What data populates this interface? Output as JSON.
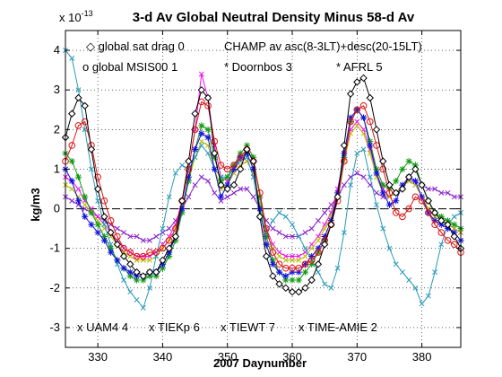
{
  "chart_data": {
    "type": "line",
    "title": "3-d Av Global Neutral Density Minus 58-d Av",
    "xlabel": "2007 Daynumber",
    "ylabel": "kg/m3",
    "y_exponent_label": "x 10",
    "y_exponent_power": "-13",
    "xlim": [
      325,
      386
    ],
    "ylim": [
      -3.5,
      4.5
    ],
    "x_ticks": [
      330,
      340,
      350,
      360,
      370,
      380
    ],
    "y_ticks": [
      -3,
      -2,
      -1,
      0,
      1,
      2,
      3,
      4
    ],
    "grid": true,
    "zero_line": "dashed",
    "legend_top_row1_left": "global sat drag 0",
    "legend_top_row1_right": "CHAMP av asc(8-3LT)+desc(20-15LT)",
    "series": [
      {
        "name": "global sat drag 0",
        "marker": "diamond",
        "color": "#000000",
        "legend_label": "◇ global sat drag 0",
        "x": [
          325,
          326,
          327,
          328,
          329,
          330,
          331,
          332,
          333,
          334,
          335,
          336,
          337,
          338,
          339,
          340,
          341,
          342,
          343,
          344,
          345,
          346,
          347,
          348,
          349,
          350,
          351,
          352,
          353,
          354,
          355,
          356,
          357,
          358,
          359,
          360,
          361,
          362,
          363,
          364,
          365,
          366,
          367,
          368,
          369,
          370,
          371,
          372,
          373,
          374,
          375,
          376,
          377,
          378,
          379,
          380,
          381,
          382,
          383,
          384,
          385,
          386
        ],
        "values": [
          1.8,
          2.4,
          2.8,
          2.6,
          1.5,
          0.5,
          -0.2,
          -0.6,
          -0.9,
          -1.2,
          -1.4,
          -1.6,
          -1.7,
          -1.6,
          -1.6,
          -1.3,
          -1.0,
          -0.7,
          0.2,
          1.2,
          2.4,
          3.0,
          2.8,
          1.4,
          0.6,
          0.5,
          0.6,
          1.0,
          1.5,
          1.2,
          -0.2,
          -1.2,
          -1.7,
          -1.9,
          -2.0,
          -2.1,
          -2.1,
          -2.0,
          -1.8,
          -1.4,
          -0.9,
          -0.4,
          0.3,
          1.6,
          2.9,
          3.2,
          3.3,
          2.8,
          2.0,
          1.2,
          0.6,
          0.4,
          0.5,
          0.8,
          1.0,
          0.6,
          0.2,
          -0.1,
          -0.3,
          -0.4,
          -0.7,
          -1.0
        ]
      },
      {
        "name": "global MSIS00 1",
        "marker": "circle",
        "color": "#dd1111",
        "legend_label": "o global MSIS00 1",
        "x": [
          325,
          326,
          327,
          328,
          329,
          330,
          331,
          332,
          333,
          334,
          335,
          336,
          337,
          338,
          339,
          340,
          341,
          342,
          343,
          344,
          345,
          346,
          347,
          348,
          349,
          350,
          351,
          352,
          353,
          354,
          355,
          356,
          357,
          358,
          359,
          360,
          361,
          362,
          363,
          364,
          365,
          366,
          367,
          368,
          369,
          370,
          371,
          372,
          373,
          374,
          375,
          376,
          377,
          378,
          379,
          380,
          381,
          382,
          383,
          384,
          385,
          386
        ],
        "values": [
          1.2,
          1.6,
          2.1,
          2.2,
          1.6,
          0.8,
          0.2,
          -0.3,
          -0.7,
          -1.0,
          -1.1,
          -1.2,
          -1.2,
          -1.1,
          -1.1,
          -1.0,
          -0.8,
          -0.5,
          0.2,
          1.0,
          2.0,
          2.7,
          2.6,
          1.7,
          1.1,
          1.0,
          1.1,
          1.3,
          1.5,
          1.2,
          0.4,
          -0.5,
          -1.1,
          -1.4,
          -1.5,
          -1.5,
          -1.5,
          -1.4,
          -1.3,
          -1.1,
          -0.8,
          -0.4,
          0.2,
          1.2,
          2.2,
          2.5,
          2.6,
          2.2,
          1.6,
          1.0,
          0.4,
          -0.1,
          -0.2,
          0.0,
          0.3,
          0.2,
          -0.1,
          -0.4,
          -0.6,
          -0.8,
          -0.9,
          -1.1
        ]
      },
      {
        "name": "Doornbos 3",
        "marker": "star",
        "color": "#1111dd",
        "legend_label": "* Doornbos 3",
        "x": [
          325,
          326,
          327,
          328,
          329,
          330,
          331,
          332,
          333,
          334,
          335,
          336,
          337,
          338,
          339,
          340,
          341,
          342,
          343,
          344,
          345,
          346,
          347,
          348,
          349,
          350,
          351,
          352,
          353,
          354,
          355,
          356,
          357,
          358,
          359,
          360,
          361,
          362,
          363,
          364,
          365,
          366,
          367,
          368,
          369,
          370,
          371,
          372,
          373,
          374,
          375,
          376,
          377,
          378,
          379,
          380,
          381,
          382,
          383,
          384,
          385,
          386
        ],
        "values": [
          1.0,
          0.7,
          0.2,
          -0.2,
          -0.4,
          -0.6,
          -0.8,
          -1.1,
          -1.3,
          -1.5,
          -1.6,
          -1.7,
          -1.7,
          -1.6,
          -1.6,
          -1.4,
          -1.1,
          -0.7,
          0.0,
          0.8,
          1.5,
          1.9,
          1.8,
          1.0,
          0.3,
          0.6,
          1.0,
          1.3,
          1.4,
          1.0,
          0.0,
          -0.9,
          -1.4,
          -1.6,
          -1.7,
          -1.6,
          -1.6,
          -1.4,
          -1.2,
          -1.0,
          -0.7,
          -0.3,
          0.4,
          1.4,
          2.3,
          2.5,
          2.3,
          1.6,
          0.9,
          0.4,
          0.1,
          0.2,
          0.6,
          0.8,
          0.7,
          0.3,
          -0.1,
          -0.3,
          -0.4,
          -0.5,
          -0.6,
          -0.8
        ]
      },
      {
        "name": "AFRL 5",
        "marker": "star",
        "color": "#119911",
        "legend_label": "* AFRL 5",
        "x": [
          325,
          326,
          327,
          328,
          329,
          330,
          331,
          332,
          333,
          334,
          335,
          336,
          337,
          338,
          339,
          340,
          341,
          342,
          343,
          344,
          345,
          346,
          347,
          348,
          349,
          350,
          351,
          352,
          353,
          354,
          355,
          356,
          357,
          358,
          359,
          360,
          361,
          362,
          363,
          364,
          365,
          366,
          367,
          368,
          369,
          370,
          371,
          372,
          373,
          374,
          375,
          376,
          377,
          378,
          379,
          380,
          381,
          382,
          383,
          384,
          385,
          386
        ],
        "values": [
          1.4,
          1.2,
          0.8,
          0.3,
          -0.1,
          -0.4,
          -0.7,
          -1.0,
          -1.3,
          -1.5,
          -1.7,
          -1.8,
          -1.8,
          -1.7,
          -1.7,
          -1.5,
          -1.2,
          -0.8,
          -0.1,
          0.7,
          1.5,
          2.1,
          2.0,
          1.3,
          0.7,
          0.8,
          1.1,
          1.4,
          1.6,
          1.3,
          0.3,
          -0.7,
          -1.3,
          -1.6,
          -1.8,
          -1.8,
          -1.8,
          -1.6,
          -1.4,
          -1.1,
          -0.8,
          -0.4,
          0.3,
          1.3,
          2.2,
          2.5,
          2.3,
          1.7,
          1.0,
          0.6,
          0.5,
          0.7,
          1.0,
          1.2,
          1.1,
          0.6,
          0.2,
          -0.1,
          -0.2,
          -0.3,
          -0.4,
          -0.5
        ]
      },
      {
        "name": "UAM4 4",
        "marker": "x",
        "color": "#2a9ab8",
        "legend_label": "x UAM4 4",
        "x": [
          325,
          326,
          327,
          328,
          329,
          330,
          331,
          332,
          333,
          334,
          335,
          336,
          337,
          338,
          339,
          340,
          341,
          342,
          343,
          344,
          345,
          346,
          347,
          348,
          349,
          350,
          351,
          352,
          353,
          354,
          355,
          356,
          357,
          358,
          359,
          360,
          361,
          362,
          363,
          364,
          365,
          366,
          367,
          368,
          369,
          370,
          371,
          372,
          373,
          374,
          375,
          376,
          377,
          378,
          379,
          380,
          381,
          382,
          383,
          384,
          385,
          386
        ],
        "values": [
          4.0,
          3.8,
          3.0,
          2.0,
          1.0,
          0.2,
          -0.4,
          -0.9,
          -1.4,
          -1.8,
          -2.1,
          -2.3,
          -2.5,
          -2.0,
          -1.2,
          -0.5,
          0.3,
          0.9,
          1.1,
          1.0,
          1.3,
          1.6,
          1.4,
          1.0,
          0.8,
          0.8,
          1.0,
          1.2,
          1.3,
          0.8,
          -0.2,
          -0.6,
          -0.3,
          -0.1,
          -0.2,
          -0.4,
          -0.7,
          -1.0,
          -1.3,
          -1.6,
          -1.9,
          -2.0,
          -1.5,
          -0.6,
          0.6,
          1.4,
          1.5,
          0.8,
          0.1,
          -0.5,
          -1.0,
          -1.4,
          -1.6,
          -1.8,
          -2.0,
          -2.4,
          -2.2,
          -1.6,
          -0.9,
          -0.4,
          -0.2,
          -0.1
        ]
      },
      {
        "name": "TIEKp 6",
        "marker": "x",
        "color": "#bbbb00",
        "legend_label": "x TIEKp 6",
        "x": [
          325,
          326,
          327,
          328,
          329,
          330,
          331,
          332,
          333,
          334,
          335,
          336,
          337,
          338,
          339,
          340,
          341,
          342,
          343,
          344,
          345,
          346,
          347,
          348,
          349,
          350,
          351,
          352,
          353,
          354,
          355,
          356,
          357,
          358,
          359,
          360,
          361,
          362,
          363,
          364,
          365,
          366,
          367,
          368,
          369,
          370,
          371,
          372,
          373,
          374,
          375,
          376,
          377,
          378,
          379,
          380,
          381,
          382,
          383,
          384,
          385,
          386
        ],
        "values": [
          0.6,
          0.5,
          0.3,
          0.1,
          -0.1,
          -0.3,
          -0.5,
          -0.7,
          -0.9,
          -1.1,
          -1.2,
          -1.3,
          -1.3,
          -1.3,
          -1.2,
          -1.0,
          -0.8,
          -0.5,
          0.0,
          0.7,
          1.3,
          1.7,
          1.6,
          1.0,
          0.5,
          0.6,
          0.9,
          1.1,
          1.2,
          0.9,
          0.1,
          -0.6,
          -1.0,
          -1.2,
          -1.3,
          -1.3,
          -1.3,
          -1.2,
          -1.0,
          -0.8,
          -0.5,
          -0.2,
          0.4,
          1.2,
          1.9,
          2.1,
          1.9,
          1.4,
          0.8,
          0.4,
          0.3,
          0.4,
          0.6,
          0.7,
          0.6,
          0.3,
          0.0,
          -0.2,
          -0.3,
          -0.4,
          -0.5,
          -0.6
        ]
      },
      {
        "name": "TIEWT 7",
        "marker": "x",
        "color": "#ee11ee",
        "legend_label": "x TIEWT 7",
        "x": [
          325,
          326,
          327,
          328,
          329,
          330,
          331,
          332,
          333,
          334,
          335,
          336,
          337,
          338,
          339,
          340,
          341,
          342,
          343,
          344,
          345,
          346,
          347,
          348,
          349,
          350,
          351,
          352,
          353,
          354,
          355,
          356,
          357,
          358,
          359,
          360,
          361,
          362,
          363,
          364,
          365,
          366,
          367,
          368,
          369,
          370,
          371,
          372,
          373,
          374,
          375,
          376,
          377,
          378,
          379,
          380,
          381,
          382,
          383,
          384,
          385,
          386
        ],
        "values": [
          0.8,
          0.7,
          0.5,
          0.2,
          0.0,
          -0.2,
          -0.4,
          -0.6,
          -0.8,
          -1.0,
          -1.1,
          -1.2,
          -1.2,
          -1.2,
          -1.1,
          -0.9,
          -0.7,
          -0.4,
          0.2,
          1.0,
          2.0,
          3.4,
          2.8,
          1.6,
          0.8,
          0.7,
          0.9,
          1.1,
          1.2,
          0.9,
          0.1,
          -0.5,
          -0.9,
          -1.1,
          -1.2,
          -1.2,
          -1.2,
          -1.1,
          -0.9,
          -0.7,
          -0.4,
          -0.1,
          0.5,
          1.3,
          2.0,
          2.2,
          2.0,
          1.5,
          0.9,
          0.5,
          0.3,
          0.4,
          0.6,
          0.7,
          0.6,
          0.3,
          0.0,
          -0.2,
          -0.3,
          -0.4,
          -0.5,
          -0.6
        ]
      },
      {
        "name": "TIME-AMIE 2",
        "marker": "x",
        "color": "#8822cc",
        "legend_label": "x TIME-AMIE 2",
        "x": [
          325,
          326,
          327,
          328,
          329,
          330,
          331,
          332,
          333,
          334,
          335,
          336,
          337,
          338,
          339,
          340,
          341,
          342,
          343,
          344,
          345,
          346,
          347,
          348,
          349,
          350,
          351,
          352,
          353,
          354,
          355,
          356,
          357,
          358,
          359,
          360,
          361,
          362,
          363,
          364,
          365,
          366,
          367,
          368,
          369,
          370,
          371,
          372,
          373,
          374,
          375,
          376,
          377,
          378,
          379,
          380,
          381,
          382,
          383,
          384,
          385,
          386
        ],
        "values": [
          0.3,
          0.2,
          0.1,
          0.0,
          -0.1,
          -0.2,
          -0.3,
          -0.4,
          -0.5,
          -0.6,
          -0.7,
          -0.7,
          -0.8,
          -0.8,
          -0.7,
          -0.6,
          -0.5,
          -0.3,
          0.0,
          0.3,
          0.6,
          0.8,
          0.7,
          0.4,
          0.2,
          0.3,
          0.4,
          0.5,
          0.5,
          0.3,
          0.0,
          -0.3,
          -0.5,
          -0.6,
          -0.7,
          -0.7,
          -0.7,
          -0.6,
          -0.5,
          -0.3,
          -0.1,
          0.1,
          0.3,
          0.6,
          0.8,
          0.9,
          0.8,
          0.6,
          0.4,
          0.3,
          0.3,
          0.4,
          0.6,
          0.7,
          0.7,
          0.6,
          0.5,
          0.5,
          0.4,
          0.4,
          0.3,
          0.3
        ]
      }
    ]
  }
}
